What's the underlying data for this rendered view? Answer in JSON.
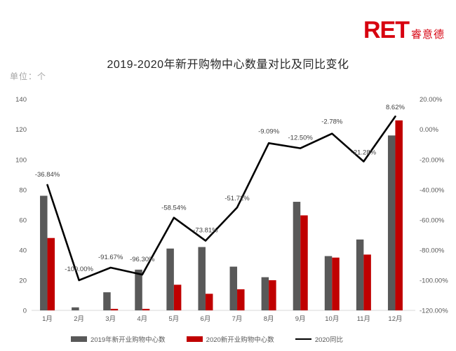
{
  "logo": {
    "brand": "RET",
    "brand_cn": "睿意德",
    "color": "#d7000f"
  },
  "title": "2019-2020年新开购物中心数量对比及同比变化",
  "unit_label": "单位：个",
  "chart_data": {
    "type": "combo-bar-line",
    "categories": [
      "1月",
      "2月",
      "3月",
      "4月",
      "5月",
      "6月",
      "7月",
      "8月",
      "9月",
      "10月",
      "11月",
      "12月"
    ],
    "series": [
      {
        "name": "2019年新开业购物中心数",
        "type": "bar",
        "axis": "left",
        "color": "#595959",
        "values": [
          76,
          2,
          12,
          27,
          41,
          42,
          29,
          22,
          72,
          36,
          47,
          116
        ]
      },
      {
        "name": "2020新开业购物中心数",
        "type": "bar",
        "axis": "left",
        "color": "#c00000",
        "values": [
          48,
          0,
          1,
          1,
          17,
          11,
          14,
          20,
          63,
          35,
          37,
          126
        ]
      },
      {
        "name": "2020同比",
        "type": "line",
        "axis": "right",
        "color": "#000000",
        "values": [
          -36.84,
          -100.0,
          -91.67,
          -96.3,
          -58.54,
          -73.81,
          -51.72,
          -9.09,
          -12.5,
          -2.78,
          -21.28,
          8.62
        ],
        "labels": [
          "-36.84%",
          "-100.00%",
          "-91.67%",
          "-96.30%",
          "-58.54%",
          "-73.81%",
          "-51.72%",
          "-9.09%",
          "-12.50%",
          "-2.78%",
          "-21.28%",
          "8.62%"
        ]
      }
    ],
    "left_axis": {
      "min": 0,
      "max": 140,
      "ticks": [
        "140",
        "120",
        "100",
        "80",
        "60",
        "40",
        "20",
        "0"
      ]
    },
    "right_axis": {
      "min": -120,
      "max": 20,
      "ticks": [
        "20.00%",
        "0.00%",
        "-20.00%",
        "-40.00%",
        "-60.00%",
        "-80.00%",
        "-100.00%",
        "-120.00%"
      ]
    },
    "grid": false,
    "legend_position": "bottom",
    "colors": {
      "data_label": "#404040",
      "axis_label": "#595959",
      "baseline": "#d9d9d9"
    }
  }
}
